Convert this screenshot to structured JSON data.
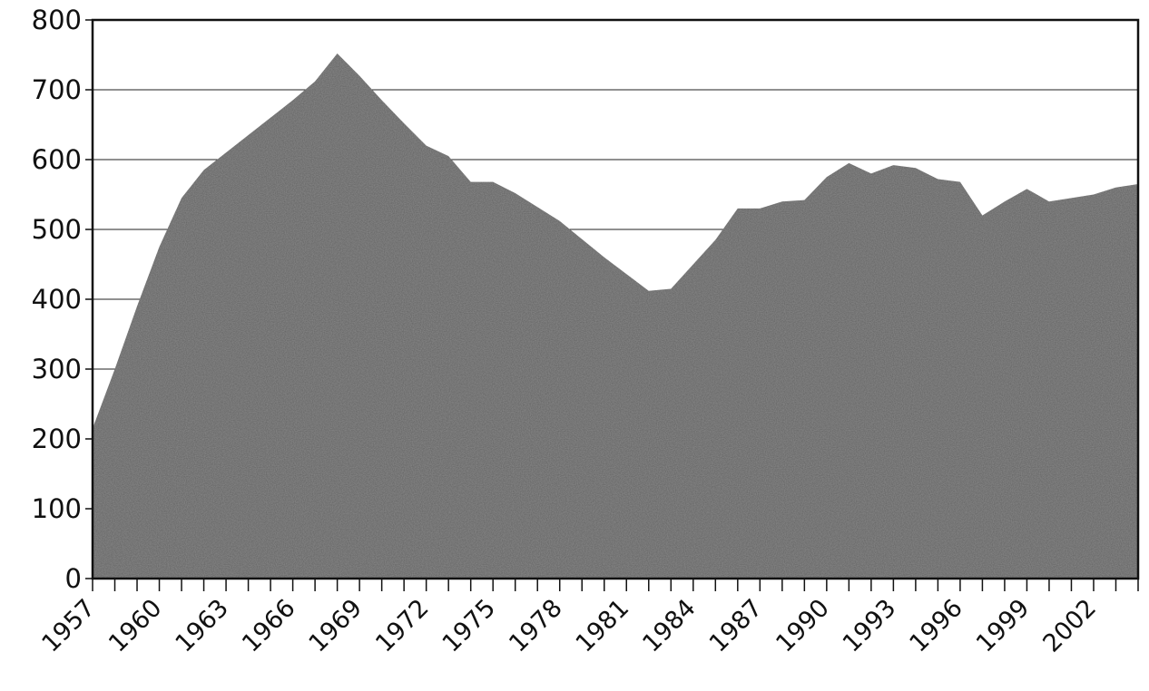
{
  "chart_data": {
    "type": "area",
    "title": "",
    "xlabel": "",
    "ylabel": "",
    "ylim": [
      0,
      800
    ],
    "grid": true,
    "yticks": [
      "0",
      "100",
      "200",
      "300",
      "400",
      "500",
      "600",
      "700",
      "800"
    ],
    "xtick_labels": [
      "1957",
      "1960",
      "1963",
      "1966",
      "1969",
      "1972",
      "1975",
      "1978",
      "1981",
      "1984",
      "1987",
      "1990",
      "1993",
      "1996",
      "1999",
      "2002"
    ],
    "x": [
      1957,
      1958,
      1959,
      1960,
      1961,
      1962,
      1963,
      1964,
      1965,
      1966,
      1967,
      1968,
      1969,
      1970,
      1971,
      1972,
      1973,
      1974,
      1975,
      1976,
      1977,
      1978,
      1979,
      1980,
      1981,
      1982,
      1983,
      1984,
      1985,
      1986,
      1987,
      1988,
      1989,
      1990,
      1991,
      1992,
      1993,
      1994,
      1995,
      1996,
      1997,
      1998,
      1999,
      2000,
      2001,
      2002,
      2003,
      2004
    ],
    "series": [
      {
        "values": [
          215,
          300,
          390,
          475,
          545,
          585,
          610,
          635,
          660,
          685,
          712,
          752,
          720,
          685,
          652,
          620,
          605,
          568,
          568,
          552,
          532,
          512,
          486,
          460,
          436,
          412,
          415,
          450,
          485,
          530,
          530,
          540,
          542,
          575,
          595,
          580,
          592,
          588,
          572,
          568,
          520,
          540,
          558,
          540,
          545,
          550,
          560,
          565
        ]
      }
    ],
    "fill_color": "#8a8a8a",
    "frame_color": "#111111"
  }
}
